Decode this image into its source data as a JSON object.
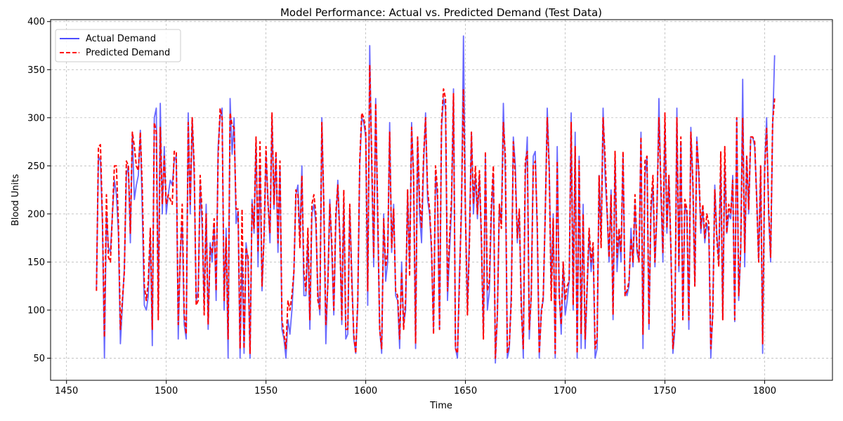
{
  "chart_data": {
    "type": "line",
    "title": "Model Performance: Actual vs. Predicted Demand (Test Data)",
    "xlabel": "Time",
    "ylabel": "Blood Units",
    "xlim": [
      1442,
      1834
    ],
    "ylim": [
      27,
      402
    ],
    "x_ticks": [
      1450,
      1500,
      1550,
      1600,
      1650,
      1700,
      1750,
      1800
    ],
    "y_ticks": [
      50,
      100,
      150,
      200,
      250,
      300,
      350,
      400
    ],
    "grid": true,
    "legend_position": "top-left",
    "x_start": 1465,
    "series": [
      {
        "name": "Actual Demand",
        "color": "#4d4dff",
        "style": "solid",
        "values": [
          124,
          260,
          255,
          190,
          50,
          200,
          165,
          160,
          200,
          235,
          220,
          180,
          65,
          105,
          145,
          240,
          250,
          170,
          285,
          215,
          230,
          240,
          287,
          200,
          105,
          100,
          115,
          180,
          63,
          300,
          310,
          100,
          315,
          200,
          270,
          200,
          220,
          235,
          230,
          255,
          260,
          70,
          160,
          190,
          85,
          70,
          305,
          200,
          300,
          240,
          110,
          120,
          230,
          185,
          105,
          210,
          80,
          170,
          150,
          190,
          110,
          270,
          300,
          310,
          100,
          185,
          50,
          320,
          262,
          300,
          190,
          203,
          50,
          160,
          55,
          170,
          150,
          50,
          215,
          180,
          275,
          145,
          250,
          120,
          175,
          260,
          215,
          170,
          300,
          205,
          260,
          160,
          250,
          80,
          70,
          50,
          90,
          75,
          100,
          140,
          220,
          230,
          175,
          250,
          115,
          115,
          175,
          80,
          200,
          210,
          190,
          120,
          95,
          300,
          205,
          65,
          130,
          215,
          160,
          95,
          190,
          235,
          180,
          85,
          215,
          70,
          75,
          205,
          140,
          70,
          55,
          105,
          250,
          300,
          295,
          280,
          105,
          375,
          250,
          145,
          320,
          190,
          80,
          55,
          200,
          130,
          150,
          295,
          160,
          210,
          115,
          110,
          60,
          150,
          85,
          100,
          225,
          145,
          295,
          235,
          60,
          280,
          200,
          170,
          250,
          305,
          215,
          200,
          160,
          80,
          240,
          215,
          80,
          290,
          320,
          310,
          110,
          160,
          205,
          330,
          60,
          50,
          140,
          200,
          385,
          200,
          100,
          180,
          285,
          200,
          240,
          195,
          240,
          170,
          75,
          260,
          100,
          120,
          200,
          240,
          45,
          95,
          210,
          190,
          315,
          240,
          50,
          60,
          120,
          280,
          250,
          170,
          200,
          110,
          50,
          240,
          280,
          70,
          120,
          260,
          265,
          180,
          50,
          100,
          110,
          200,
          310,
          250,
          120,
          200,
          50,
          270,
          120,
          75,
          150,
          95,
          110,
          130,
          305,
          100,
          285,
          50,
          260,
          60,
          210,
          60,
          120,
          180,
          140,
          165,
          50,
          60,
          240,
          175,
          310,
          240,
          200,
          150,
          225,
          90,
          260,
          140,
          180,
          150,
          260,
          120,
          115,
          125,
          185,
          145,
          210,
          160,
          150,
          285,
          60,
          240,
          260,
          80,
          200,
          230,
          145,
          200,
          320,
          220,
          150,
          295,
          180,
          240,
          160,
          55,
          80,
          310,
          140,
          275,
          90,
          210,
          200,
          80,
          290,
          230,
          125,
          280,
          240,
          180,
          205,
          170,
          190,
          180,
          50,
          100,
          230,
          180,
          150,
          250,
          90,
          250,
          180,
          200,
          195,
          240,
          88,
          300,
          110,
          160,
          340,
          145,
          260,
          200,
          280,
          280,
          270,
          220,
          150,
          250,
          55,
          250,
          300,
          200,
          150,
          290,
          365
        ]
      },
      {
        "name": "Predicted Demand",
        "color": "#ff0000",
        "style": "dashed",
        "values": [
          120,
          270,
          272,
          195,
          72,
          220,
          155,
          150,
          200,
          250,
          250,
          190,
          80,
          110,
          140,
          255,
          250,
          180,
          285,
          270,
          250,
          245,
          285,
          225,
          125,
          110,
          130,
          185,
          80,
          295,
          285,
          90,
          290,
          210,
          260,
          210,
          220,
          215,
          210,
          265,
          265,
          85,
          155,
          210,
          95,
          75,
          295,
          210,
          300,
          250,
          105,
          110,
          240,
          200,
          95,
          200,
          85,
          165,
          160,
          195,
          120,
          260,
          310,
          300,
          110,
          175,
          70,
          305,
          292,
          290,
          205,
          205,
          60,
          205,
          60,
          165,
          155,
          55,
          210,
          185,
          280,
          160,
          275,
          125,
          175,
          270,
          210,
          180,
          305,
          210,
          265,
          170,
          255,
          90,
          75,
          60,
          110,
          100,
          115,
          140,
          225,
          220,
          165,
          240,
          140,
          120,
          185,
          90,
          210,
          220,
          200,
          110,
          100,
          295,
          210,
          85,
          125,
          210,
          170,
          100,
          200,
          230,
          175,
          90,
          225,
          80,
          80,
          210,
          130,
          75,
          55,
          110,
          255,
          305,
          300,
          285,
          120,
          355,
          260,
          155,
          315,
          205,
          80,
          60,
          195,
          145,
          160,
          285,
          165,
          205,
          120,
          115,
          70,
          140,
          80,
          110,
          225,
          135,
          290,
          240,
          65,
          280,
          215,
          185,
          260,
          300,
          225,
          205,
          165,
          75,
          250,
          225,
          80,
          295,
          330,
          320,
          120,
          175,
          215,
          325,
          60,
          55,
          130,
          210,
          330,
          200,
          95,
          170,
          285,
          210,
          250,
          200,
          245,
          175,
          70,
          265,
          120,
          130,
          210,
          250,
          50,
          95,
          210,
          185,
          295,
          260,
          55,
          65,
          110,
          275,
          240,
          175,
          205,
          100,
          60,
          255,
          265,
          80,
          115,
          250,
          255,
          190,
          55,
          95,
          115,
          200,
          300,
          245,
          110,
          195,
          55,
          255,
          115,
          85,
          150,
          110,
          125,
          130,
          295,
          105,
          270,
          55,
          255,
          75,
          200,
          70,
          125,
          185,
          150,
          170,
          60,
          70,
          240,
          165,
          300,
          260,
          205,
          155,
          220,
          95,
          265,
          155,
          185,
          160,
          265,
          115,
          120,
          130,
          175,
          150,
          220,
          165,
          150,
          280,
          75,
          255,
          260,
          85,
          210,
          240,
          150,
          205,
          300,
          230,
          160,
          305,
          185,
          240,
          165,
          60,
          85,
          300,
          145,
          280,
          90,
          215,
          205,
          90,
          285,
          235,
          125,
          275,
          245,
          185,
          210,
          175,
          200,
          190,
          60,
          95,
          225,
          175,
          145,
          265,
          90,
          270,
          180,
          210,
          200,
          235,
          90,
          300,
          115,
          165,
          300,
          160,
          260,
          205,
          280,
          280,
          275,
          215,
          150,
          250,
          65,
          245,
          290,
          205,
          155,
          295,
          320
        ]
      }
    ]
  }
}
